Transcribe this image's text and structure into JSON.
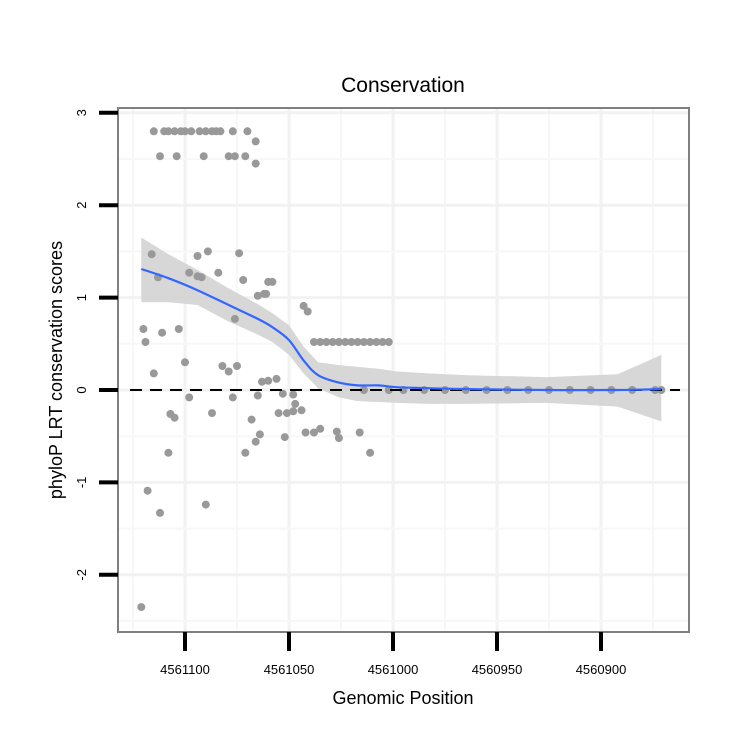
{
  "chart_data": {
    "type": "scatter",
    "title": "Conservation",
    "xlabel": "Genomic Position",
    "ylabel": "phyloP LRT conservation scores",
    "x_reversed": true,
    "xlim": [
      4561128,
      4560853
    ],
    "ylim": [
      -2.55,
      3.05
    ],
    "x_ticks": [
      4561100,
      4561050,
      4561000,
      4560950,
      4560900
    ],
    "x_tick_labels": [
      "4561100",
      "4561050",
      "4561000",
      "4560950",
      "4560900"
    ],
    "y_ticks": [
      3,
      2,
      1,
      0,
      -1,
      -2
    ],
    "y_tick_labels": [
      "3",
      "2",
      "1",
      "0",
      "-1",
      "-2"
    ],
    "grid": true,
    "reference_line": {
      "y": 0,
      "style": "dashed",
      "color": "#000000"
    },
    "point_color": "#999999",
    "smooth_color": "#3366FF",
    "ribbon_color": "#d3d3d3",
    "points": [
      [
        4561115,
        2.8
      ],
      [
        4561110,
        2.8
      ],
      [
        4561108,
        2.8
      ],
      [
        4561105,
        2.8
      ],
      [
        4561102,
        2.8
      ],
      [
        4561100,
        2.8
      ],
      [
        4561097,
        2.8
      ],
      [
        4561093,
        2.8
      ],
      [
        4561090,
        2.8
      ],
      [
        4561087,
        2.8
      ],
      [
        4561085,
        2.8
      ],
      [
        4561083,
        2.8
      ],
      [
        4561077,
        2.8
      ],
      [
        4561070,
        2.8
      ],
      [
        4561066,
        2.69
      ],
      [
        4561112,
        2.53
      ],
      [
        4561104,
        2.53
      ],
      [
        4561091,
        2.53
      ],
      [
        4561079,
        2.53
      ],
      [
        4561076,
        2.53
      ],
      [
        4561071,
        2.53
      ],
      [
        4561066,
        2.45
      ],
      [
        4561116,
        1.47
      ],
      [
        4561113,
        1.22
      ],
      [
        4561094,
        1.45
      ],
      [
        4561089,
        1.5
      ],
      [
        4561074,
        1.48
      ],
      [
        4561098,
        1.27
      ],
      [
        4561094,
        1.23
      ],
      [
        4561092,
        1.22
      ],
      [
        4561084,
        1.27
      ],
      [
        4561072,
        1.19
      ],
      [
        4561062,
        1.04
      ],
      [
        4561060,
        1.17
      ],
      [
        4561058,
        1.17
      ],
      [
        4561065,
        1.02
      ],
      [
        4561061,
        1.04
      ],
      [
        4561043,
        0.91
      ],
      [
        4561041,
        0.85
      ],
      [
        4561076,
        0.77
      ],
      [
        4561120,
        0.66
      ],
      [
        4561111,
        0.62
      ],
      [
        4561103,
        0.66
      ],
      [
        4561119,
        0.52
      ],
      [
        4561100,
        0.3
      ],
      [
        4561115,
        0.18
      ],
      [
        4561082,
        0.26
      ],
      [
        4561079,
        0.2
      ],
      [
        4561075,
        0.26
      ],
      [
        4561063,
        0.09
      ],
      [
        4561060,
        0.1
      ],
      [
        4561056,
        0.12
      ],
      [
        4561098,
        -0.08
      ],
      [
        4561077,
        -0.08
      ],
      [
        4561065,
        -0.06
      ],
      [
        4561053,
        -0.04
      ],
      [
        4561048,
        -0.05
      ],
      [
        4561047,
        -0.15
      ],
      [
        4561055,
        -0.25
      ],
      [
        4561051,
        -0.25
      ],
      [
        4561048,
        -0.23
      ],
      [
        4561044,
        -0.22
      ],
      [
        4561107,
        -0.26
      ],
      [
        4561105,
        -0.3
      ],
      [
        4561087,
        -0.25
      ],
      [
        4561068,
        -0.32
      ],
      [
        4561064,
        -0.48
      ],
      [
        4561066,
        -0.56
      ],
      [
        4561052,
        -0.51
      ],
      [
        4561042,
        -0.46
      ],
      [
        4561038,
        -0.46
      ],
      [
        4561035,
        -0.42
      ],
      [
        4561027,
        -0.45
      ],
      [
        4561026,
        -0.52
      ],
      [
        4561016,
        -0.46
      ],
      [
        4561011,
        -0.68
      ],
      [
        4561071,
        -0.68
      ],
      [
        4561108,
        -0.68
      ],
      [
        4561038,
        0.52
      ],
      [
        4561035,
        0.52
      ],
      [
        4561032,
        0.52
      ],
      [
        4561029,
        0.52
      ],
      [
        4561026,
        0.52
      ],
      [
        4561023,
        0.52
      ],
      [
        4561020,
        0.52
      ],
      [
        4561017,
        0.52
      ],
      [
        4561014,
        0.52
      ],
      [
        4561011,
        0.52
      ],
      [
        4561008,
        0.52
      ],
      [
        4561005,
        0.52
      ],
      [
        4561002,
        0.52
      ],
      [
        4561014,
        0.0
      ],
      [
        4561002,
        0.0
      ],
      [
        4560995,
        0.0
      ],
      [
        4560985,
        0.0
      ],
      [
        4560975,
        0.0
      ],
      [
        4560965,
        0.0
      ],
      [
        4560955,
        0.0
      ],
      [
        4560945,
        0.0
      ],
      [
        4560935,
        0.0
      ],
      [
        4560925,
        0.0
      ],
      [
        4560915,
        0.0
      ],
      [
        4560905,
        0.0
      ],
      [
        4560895,
        0.0
      ],
      [
        4560885,
        0.0
      ],
      [
        4560874,
        0.0
      ],
      [
        4560871,
        0.0
      ],
      [
        4561118,
        -1.09
      ],
      [
        4561112,
        -1.33
      ],
      [
        4561090,
        -1.24
      ],
      [
        4561121,
        -2.35
      ]
    ],
    "smooth": {
      "x": [
        4561121,
        4561108,
        4561094,
        4561079,
        4561065,
        4561058,
        4561050,
        4561043,
        4561036,
        4561026,
        4561017,
        4561007,
        4560998,
        4560983,
        4560964,
        4560926,
        4560892,
        4560871
      ],
      "y": [
        1.31,
        1.21,
        1.08,
        0.92,
        0.77,
        0.68,
        0.54,
        0.32,
        0.16,
        0.08,
        0.05,
        0.05,
        0.03,
        0.02,
        0.01,
        0.0,
        0.0,
        0.01
      ],
      "upper": [
        1.65,
        1.47,
        1.3,
        1.1,
        0.93,
        0.83,
        0.7,
        0.47,
        0.3,
        0.27,
        0.25,
        0.23,
        0.2,
        0.18,
        0.16,
        0.14,
        0.17,
        0.38
      ],
      "lower": [
        0.95,
        0.95,
        0.92,
        0.74,
        0.6,
        0.52,
        0.38,
        0.18,
        0.02,
        -0.08,
        -0.12,
        -0.13,
        -0.14,
        -0.15,
        -0.15,
        -0.14,
        -0.18,
        -0.34
      ]
    }
  }
}
